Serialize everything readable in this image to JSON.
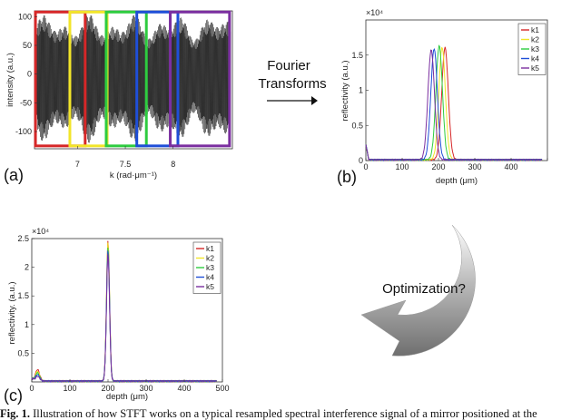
{
  "figure": {
    "annotation_fourier_line1": "Fourier",
    "annotation_fourier_line2": "Transforms",
    "annotation_optimization": "Optimization?",
    "caption_label": "Fig. 1.",
    "caption_text": "Illustration of how STFT works on a typical resampled spectral interference signal of a mirror positioned at the"
  },
  "chart_data": [
    {
      "panel": "(a)",
      "type": "line",
      "xlabel": "k (rad·μm⁻¹)",
      "ylabel": "intensity (a.u.)",
      "xlim": [
        6.55,
        8.62
      ],
      "ylim": [
        -130,
        110
      ],
      "xticks": [
        7,
        7.5,
        8
      ],
      "yticks": [
        -100,
        -50,
        0,
        50,
        100
      ],
      "signal_envelope": {
        "min": -120,
        "max": 105
      },
      "windows": [
        {
          "x_range": [
            6.56,
            7.08
          ],
          "y_range": [
            -125,
            108
          ],
          "color": "#d62728"
        },
        {
          "x_range": [
            6.92,
            7.31
          ],
          "y_range": [
            -125,
            108
          ],
          "color": "#f2e52a"
        },
        {
          "x_range": [
            7.3,
            7.72
          ],
          "y_range": [
            -125,
            108
          ],
          "color": "#2ecc40"
        },
        {
          "x_range": [
            7.62,
            8.05
          ],
          "y_range": [
            -125,
            108
          ],
          "color": "#1f4fd8"
        },
        {
          "x_range": [
            7.97,
            8.59
          ],
          "y_range": [
            -125,
            108
          ],
          "color": "#7b2fa0"
        }
      ]
    },
    {
      "panel": "(b)",
      "type": "line",
      "xlabel": "depth (μm)",
      "ylabel": "reflectivity (a.u.)",
      "exponent": "×10⁴",
      "xlim": [
        0,
        500
      ],
      "ylim": [
        0,
        2
      ],
      "xticks": [
        0,
        100,
        200,
        300,
        400,
        500
      ],
      "xtick_labels": [
        "0",
        "100",
        "200",
        "300",
        "400"
      ],
      "yticks": [
        0,
        0.5,
        1,
        1.5
      ],
      "legend": "top-right",
      "series": [
        {
          "name": "k1",
          "color": "#d62728",
          "peak_x": 218,
          "peak_y": 1.6
        },
        {
          "name": "k2",
          "color": "#f2e52a",
          "peak_x": 210,
          "peak_y": 1.6
        },
        {
          "name": "k3",
          "color": "#2ecc40",
          "peak_x": 202,
          "peak_y": 1.62
        },
        {
          "name": "k4",
          "color": "#1f4fd8",
          "peak_x": 188,
          "peak_y": 1.58
        },
        {
          "name": "k5",
          "color": "#7b2fa0",
          "peak_x": 180,
          "peak_y": 1.56
        }
      ]
    },
    {
      "panel": "(c)",
      "type": "line",
      "xlabel": "depth (μm)",
      "ylabel": "reflectivity. (a.u.)",
      "exponent": "×10⁴",
      "xlim": [
        0,
        500
      ],
      "ylim": [
        0,
        2.5
      ],
      "xticks": [
        0,
        100,
        200,
        300,
        400,
        500
      ],
      "xtick_labels": [
        "0",
        "100",
        "200",
        "300",
        "400",
        "500"
      ],
      "yticks": [
        0.5,
        1,
        1.5,
        2,
        2.5
      ],
      "legend": "top-right",
      "series": [
        {
          "name": "k1",
          "color": "#d62728",
          "peak_x": 200,
          "peak_y": 2.45
        },
        {
          "name": "k2",
          "color": "#f2e52a",
          "peak_x": 200,
          "peak_y": 2.42
        },
        {
          "name": "k3",
          "color": "#2ecc40",
          "peak_x": 200,
          "peak_y": 2.35
        },
        {
          "name": "k4",
          "color": "#1f4fd8",
          "peak_x": 200,
          "peak_y": 2.28
        },
        {
          "name": "k5",
          "color": "#7b2fa0",
          "peak_x": 200,
          "peak_y": 2.22
        }
      ]
    }
  ]
}
